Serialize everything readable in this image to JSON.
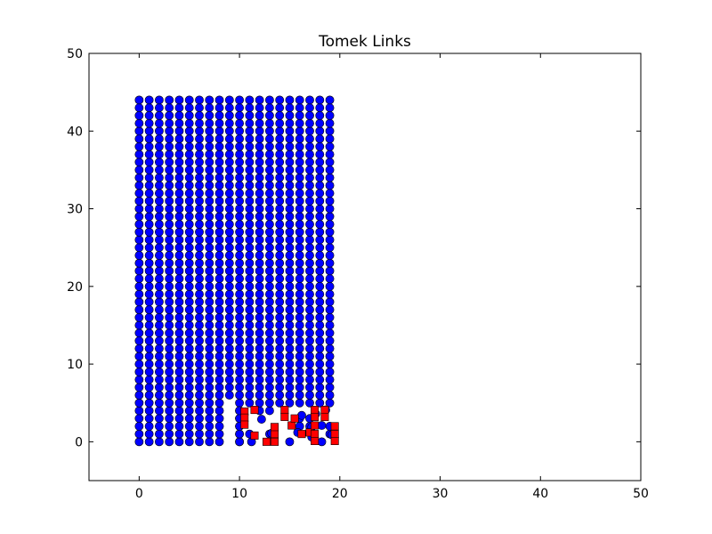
{
  "chart_data": {
    "type": "scatter",
    "title": "Tomek Links",
    "xlabel": "",
    "ylabel": "",
    "xlim": [
      -5,
      50
    ],
    "ylim": [
      -5,
      50
    ],
    "x_ticks": [
      0,
      10,
      20,
      30,
      40,
      50
    ],
    "y_ticks": [
      0,
      10,
      20,
      30,
      40,
      50
    ],
    "x_tick_labels": [
      "0",
      "10",
      "20",
      "30",
      "40",
      "50"
    ],
    "y_tick_labels": [
      "0",
      "10",
      "20",
      "30",
      "40",
      "50"
    ],
    "grid": false,
    "series": [
      {
        "marker": "circle",
        "color": "#0000ff",
        "grid_points": {
          "x_start": 0,
          "x_step": 1,
          "x_count": 20,
          "y_start": 0,
          "y_step": 1,
          "y_count": 45,
          "description_x_range": [
            0,
            19
          ],
          "description_y_range": [
            0,
            44
          ]
        },
        "missing": [
          [
            9,
            0
          ],
          [
            9,
            1
          ],
          [
            9,
            2
          ],
          [
            9,
            3
          ],
          [
            9,
            4
          ],
          [
            9,
            5
          ],
          [
            11,
            0
          ],
          [
            11,
            2
          ],
          [
            11,
            3
          ],
          [
            11,
            4
          ],
          [
            12,
            0
          ],
          [
            12,
            1
          ],
          [
            12,
            2
          ],
          [
            12,
            3
          ],
          [
            13,
            0
          ],
          [
            13,
            2
          ],
          [
            13,
            3
          ],
          [
            14,
            0
          ],
          [
            14,
            1
          ],
          [
            14,
            2
          ],
          [
            14,
            3
          ],
          [
            14,
            4
          ],
          [
            15,
            1
          ],
          [
            15,
            2
          ],
          [
            15,
            3
          ],
          [
            15,
            4
          ],
          [
            16,
            0
          ],
          [
            16,
            1
          ],
          [
            16,
            4
          ],
          [
            17,
            0
          ],
          [
            17,
            1
          ],
          [
            17,
            4
          ],
          [
            18,
            0
          ],
          [
            18,
            1
          ],
          [
            18,
            2
          ],
          [
            18,
            3
          ],
          [
            18,
            4
          ],
          [
            19,
            0
          ],
          [
            19,
            3
          ],
          [
            19,
            4
          ]
        ],
        "extra_points": [
          [
            10,
            0
          ],
          [
            10,
            1
          ],
          [
            10,
            2
          ],
          [
            10,
            3
          ],
          [
            10,
            4
          ],
          [
            11.2,
            0
          ],
          [
            12.2,
            2.9
          ],
          [
            13.2,
            0.2
          ],
          [
            13.2,
            1.1
          ],
          [
            15.8,
            1.2
          ],
          [
            16.2,
            3.4
          ],
          [
            17.2,
            1.9
          ],
          [
            17.2,
            0.6
          ],
          [
            17.6,
            3.6
          ],
          [
            18.2,
            0
          ],
          [
            18.2,
            2.1
          ],
          [
            19.2,
            0.9
          ],
          [
            18.6,
            4.1
          ]
        ]
      },
      {
        "marker": "square",
        "color": "#ff0000",
        "points": [
          [
            10.5,
            3.9
          ],
          [
            10.5,
            3.1
          ],
          [
            10.5,
            2.2
          ],
          [
            11.5,
            4.1
          ],
          [
            11.5,
            0.8
          ],
          [
            12.7,
            0
          ],
          [
            13.5,
            0
          ],
          [
            13.5,
            1
          ],
          [
            13.5,
            1.9
          ],
          [
            14.5,
            4.1
          ],
          [
            14.5,
            3.2
          ],
          [
            15.2,
            2.1
          ],
          [
            15.5,
            3.0
          ],
          [
            16.2,
            1.0
          ],
          [
            17.0,
            1.2
          ],
          [
            17.5,
            4.1
          ],
          [
            17.5,
            3.2
          ],
          [
            17.5,
            2.1
          ],
          [
            17.5,
            1.0
          ],
          [
            17.5,
            0.1
          ],
          [
            18.5,
            4.1
          ],
          [
            18.5,
            3.2
          ],
          [
            19.5,
            2.0
          ],
          [
            19.5,
            1.0
          ],
          [
            19.5,
            0.1
          ]
        ]
      }
    ]
  }
}
